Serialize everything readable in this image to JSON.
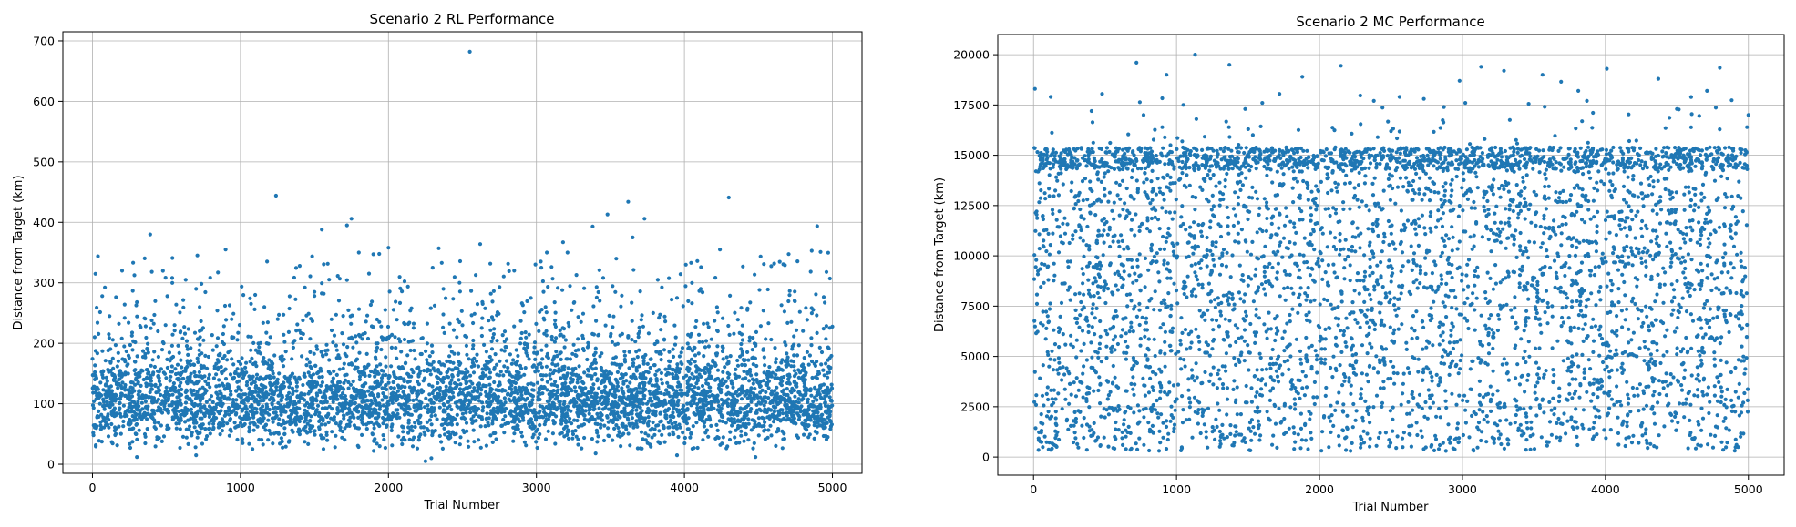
{
  "chart_data": [
    {
      "type": "scatter",
      "title": "Scenario 2 RL Performance",
      "xlabel": "Trial Number",
      "ylabel": "Distance from Target (km)",
      "xlim": [
        -200,
        5200
      ],
      "ylim": [
        -15,
        715
      ],
      "xticks": [
        "0",
        "1000",
        "2000",
        "3000",
        "4000",
        "5000"
      ],
      "yticks": [
        "0",
        "100",
        "200",
        "300",
        "400",
        "500",
        "600",
        "700"
      ],
      "grid": true,
      "color": "#1f77b4",
      "n_points": 5000,
      "distribution": "dense band roughly 30-200 km centered near 100 km, sparser points 200-450 km",
      "points": [
        [
          2550,
          682
        ],
        [
          1240,
          444
        ],
        [
          4300,
          441
        ],
        [
          3620,
          434
        ],
        [
          3480,
          413
        ],
        [
          1750,
          406
        ],
        [
          3730,
          406
        ],
        [
          1720,
          395
        ],
        [
          3380,
          393
        ],
        [
          1550,
          388
        ],
        [
          390,
          380
        ],
        [
          3650,
          375
        ],
        [
          2620,
          364
        ],
        [
          2000,
          358
        ],
        [
          900,
          355
        ],
        [
          4240,
          355
        ],
        [
          4860,
          353
        ],
        [
          1800,
          350
        ],
        [
          3070,
          350
        ],
        [
          4920,
          351
        ],
        [
          540,
          341
        ],
        [
          1400,
          328
        ],
        [
          3180,
          367
        ],
        [
          3210,
          350
        ],
        [
          2360,
          333
        ],
        [
          2340,
          357
        ],
        [
          4010,
          330
        ],
        [
          3270,
          313
        ],
        [
          3820,
          305
        ],
        [
          4960,
          318
        ],
        [
          200,
          320
        ],
        [
          630,
          305
        ],
        [
          300,
          268
        ],
        [
          4110,
          290
        ],
        [
          1100,
          280
        ],
        [
          2480,
          300
        ],
        [
          700,
          290
        ],
        [
          3950,
          275
        ],
        [
          1500,
          285
        ],
        [
          2850,
          320
        ],
        [
          20,
          315
        ],
        [
          2290,
          10
        ],
        [
          2250,
          5
        ],
        [
          300,
          12
        ],
        [
          700,
          15
        ],
        [
          3400,
          18
        ],
        [
          3950,
          15
        ],
        [
          4480,
          12
        ],
        [
          1900,
          22
        ]
      ]
    },
    {
      "type": "scatter",
      "title": "Scenario 2 MC Performance",
      "xlabel": "Trial Number",
      "ylabel": "Distance from Target (km)",
      "xlim": [
        -250,
        5250
      ],
      "ylim": [
        -900,
        21000
      ],
      "xticks": [
        "0",
        "1000",
        "2000",
        "3000",
        "4000",
        "5000"
      ],
      "yticks": [
        "0",
        "2500",
        "5000",
        "7500",
        "10000",
        "12500",
        "15000",
        "17500",
        "20000"
      ],
      "grid": true,
      "color": "#1f77b4",
      "n_points": 5000,
      "distribution": "roughly uniform 0-15000 km with a dense band near 15000 km and sparse points 15500-20000 km",
      "points": [
        [
          1130,
          20000
        ],
        [
          720,
          19600
        ],
        [
          1370,
          19500
        ],
        [
          2150,
          19450
        ],
        [
          3130,
          19400
        ],
        [
          4800,
          19350
        ],
        [
          4010,
          19300
        ],
        [
          3290,
          19200
        ],
        [
          930,
          19000
        ],
        [
          3560,
          19000
        ],
        [
          1880,
          18900
        ],
        [
          4370,
          18800
        ],
        [
          2980,
          18700
        ],
        [
          3690,
          18650
        ],
        [
          4710,
          18200
        ],
        [
          3810,
          18200
        ],
        [
          1720,
          18050
        ],
        [
          480,
          18050
        ],
        [
          10,
          18300
        ],
        [
          2560,
          17900
        ],
        [
          2380,
          17700
        ],
        [
          1600,
          17600
        ],
        [
          3870,
          17700
        ],
        [
          3020,
          17600
        ],
        [
          2870,
          17400
        ],
        [
          5000,
          17000
        ],
        [
          4500,
          17300
        ],
        [
          1480,
          17300
        ],
        [
          770,
          17000
        ],
        [
          120,
          17900
        ],
        [
          2730,
          17800
        ],
        [
          4990,
          16400
        ],
        [
          2500,
          16200
        ]
      ]
    }
  ]
}
